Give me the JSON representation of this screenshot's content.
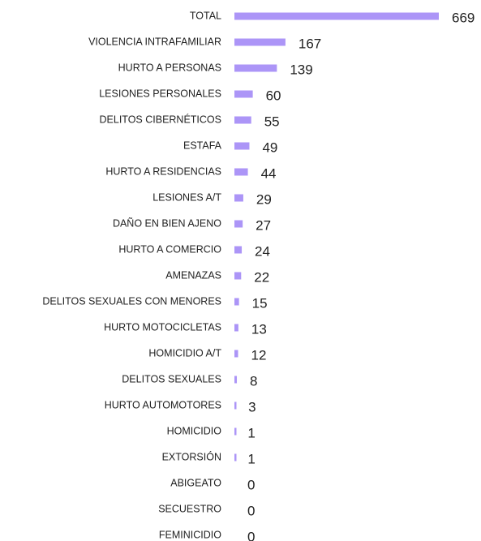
{
  "chart_data": {
    "type": "bar",
    "orientation": "horizontal",
    "color": "#ac95f7",
    "categories": [
      "TOTAL",
      "VIOLENCIA INTRAFAMILIAR",
      "HURTO A PERSONAS",
      "LESIONES PERSONALES",
      "DELITOS CIBERNÉTICOS",
      "ESTAFA",
      "HURTO A RESIDENCIAS",
      "LESIONES A/T",
      "DAÑO EN BIEN AJENO",
      "HURTO A COMERCIO",
      "AMENAZAS",
      "DELITOS SEXUALES CON MENORES",
      "HURTO MOTOCICLETAS",
      "HOMICIDIO A/T",
      "DELITOS SEXUALES",
      "HURTO AUTOMOTORES",
      "HOMICIDIO",
      "EXTORSIÓN",
      "ABIGEATO",
      "SECUESTRO",
      "FEMINICIDIO"
    ],
    "values": [
      669,
      167,
      139,
      60,
      55,
      49,
      44,
      29,
      27,
      24,
      22,
      15,
      13,
      12,
      8,
      3,
      1,
      1,
      0,
      0,
      0
    ]
  }
}
